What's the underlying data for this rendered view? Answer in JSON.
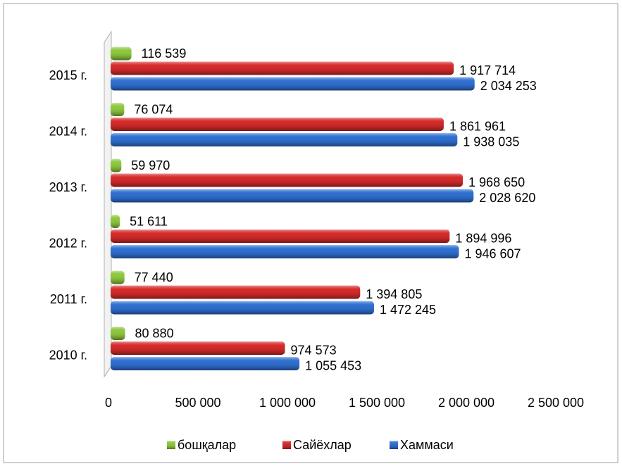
{
  "chart_data": {
    "type": "bar",
    "orientation": "horizontal",
    "categories": [
      "2010 г.",
      "2011 г.",
      "2012 г.",
      "2013 г.",
      "2014 г.",
      "2015 г."
    ],
    "series": [
      {
        "name": "бошқалар",
        "color": "#8dc63f",
        "values": [
          80880,
          77440,
          51611,
          59970,
          76074,
          116539
        ],
        "value_labels": [
          "80 880",
          "77 440",
          "51 611",
          "59 970",
          "76 074",
          "116 539"
        ]
      },
      {
        "name": "Сайёхлар",
        "color": "#d42a2a",
        "values": [
          974573,
          1394805,
          1894996,
          1968650,
          1861961,
          1917714
        ],
        "value_labels": [
          "974 573",
          "1 394 805",
          "1 894 996",
          "1 968 650",
          "1 861 961",
          "1 917 714"
        ]
      },
      {
        "name": "Хаммаси",
        "color": "#2f6fd0",
        "values": [
          1055453,
          1472245,
          1946607,
          2028620,
          1938035,
          2034253
        ],
        "value_labels": [
          "1 055 453",
          "1 472 245",
          "1 946 607",
          "2 028 620",
          "1 938 035",
          "2 034 253"
        ]
      }
    ],
    "xlim": [
      0,
      2500000
    ],
    "xticks": [
      0,
      {
        "value": 500000,
        "label": "500 000"
      },
      {
        "value": 1000000,
        "label": "1 000 000"
      },
      {
        "value": 1500000,
        "label": "1 500 000"
      },
      {
        "value": 2000000,
        "label": "2 000 000"
      },
      {
        "value": 2500000,
        "label": "2 500 000"
      }
    ],
    "legend": "bottom"
  }
}
